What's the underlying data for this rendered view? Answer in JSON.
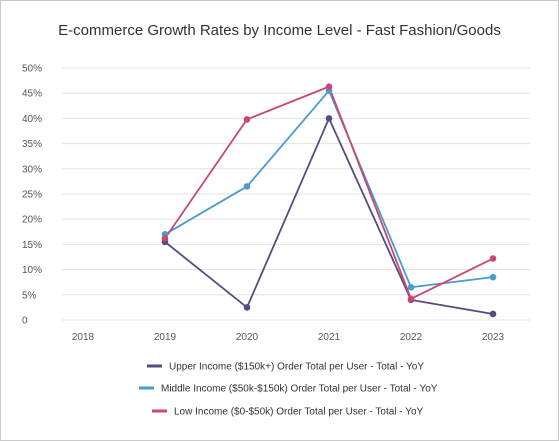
{
  "chart_data": {
    "type": "line",
    "title": "E-commerce Growth Rates by Income Level - Fast Fashion/Goods",
    "xlabel": "",
    "ylabel": "",
    "categories": [
      "2018",
      "2019",
      "2020",
      "2021",
      "2022",
      "2023"
    ],
    "y_ticks": [
      "0",
      "5%",
      "10%",
      "15%",
      "20%",
      "25%",
      "30%",
      "35%",
      "40%",
      "45%",
      "50%"
    ],
    "ylim": [
      0,
      50
    ],
    "grid": true,
    "legend_position": "bottom",
    "series": [
      {
        "name": "Upper Income ($150k+) Order Total per User - Total - YoY",
        "color": "#5a4a80",
        "values": [
          null,
          15.5,
          2.5,
          40,
          4,
          1.2
        ]
      },
      {
        "name": "Middle Income ($50k-$150k) Order Total per User - Total - YoY",
        "color": "#4a9bd2",
        "values": [
          null,
          17,
          26.5,
          45.5,
          6.5,
          8.5
        ]
      },
      {
        "name": "Low Income ($0-$50k) Order Total per User - Total - YoY",
        "color": "#c8486e",
        "values": [
          null,
          16.2,
          39.8,
          46.3,
          4.2,
          12.2
        ]
      }
    ]
  }
}
